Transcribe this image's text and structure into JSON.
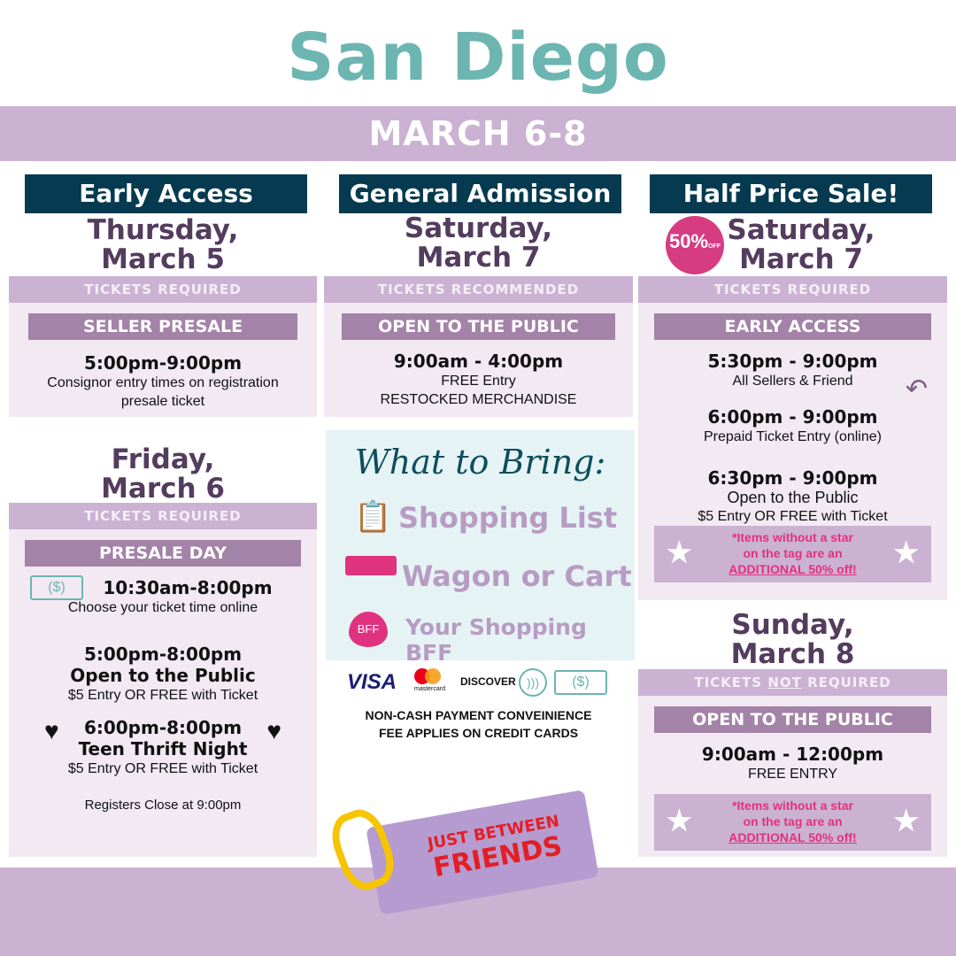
{
  "title": "San Diego",
  "dates": "MARCH 6-8",
  "colors": {
    "teal": "#6cb5b1",
    "navy": "#053a50",
    "lavender": "#cbb2d2",
    "purple": "#a483a8",
    "pink": "#e0327f"
  },
  "col1": {
    "header": "Early Access",
    "day1": "Thursday,",
    "date1": "March 5",
    "tickets1": "TICKETS REQUIRED",
    "sub1": "SELLER PRESALE",
    "time1": "5:00pm-9:00pm",
    "desc1a": "Consignor entry times on registration",
    "desc1b": "presale ticket",
    "day2": "Friday,",
    "date2": "March 6",
    "tickets2": "TICKETS REQUIRED",
    "sub2": "PRESALE DAY",
    "time2": "10:30am-8:00pm",
    "desc2": "Choose your ticket time online",
    "time3": "5:00pm-8:00pm",
    "time3b": "Open to the Public",
    "desc3": "$5 Entry OR FREE with Ticket",
    "time4": "6:00pm-8:00pm",
    "time4b": "Teen Thrift Night",
    "desc4": "$5 Entry OR FREE with Ticket",
    "close": "Registers Close at 9:00pm"
  },
  "col2": {
    "header": "General Admission",
    "day": "Saturday,",
    "date": "March 7",
    "tickets": "TICKETS RECOMMENDED",
    "sub": "OPEN TO THE PUBLIC",
    "time": "9:00am - 4:00pm",
    "desc1": "FREE Entry",
    "desc2": "RESTOCKED MERCHANDISE",
    "bring_title": "What to Bring:",
    "bring_items": [
      "Shopping List",
      "Wagon or Cart",
      "Your Shopping BFF"
    ],
    "bff_badge": "BFF",
    "payments": [
      "VISA",
      "mastercard",
      "DISCOVER"
    ],
    "fee1": "NON-CASH PAYMENT CONVEINIENCE",
    "fee2": "FEE APPLIES ON CREDIT CARDS"
  },
  "col3": {
    "header": "Half Price Sale!",
    "badge": "50%",
    "badge_off": "OFF",
    "day": "Saturday,",
    "date": "March 7",
    "tickets": "TICKETS REQUIRED",
    "sub": "EARLY ACCESS",
    "time1": "5:30pm - 9:00pm",
    "desc1": "All Sellers & Friend",
    "time2": "6:00pm - 9:00pm",
    "desc2": "Prepaid Ticket Entry (online)",
    "time3": "6:30pm - 9:00pm",
    "desc3a": "Open to the Public",
    "desc3b": "$5 Entry OR FREE with Ticket",
    "note1": "*Items without a star",
    "note2": "on the tag are an",
    "note3": "ADDITIONAL 50% off!",
    "day2": "Sunday,",
    "date2": "March 8",
    "tickets2a": "TICKETS ",
    "tickets2b": "NOT",
    "tickets2c": " REQUIRED",
    "sub2": "OPEN TO THE PUBLIC",
    "time4": "9:00am - 12:00pm",
    "desc4": "FREE ENTRY"
  },
  "logo": {
    "line1": "JUST BETWEEN",
    "line2": "FRIENDS"
  }
}
